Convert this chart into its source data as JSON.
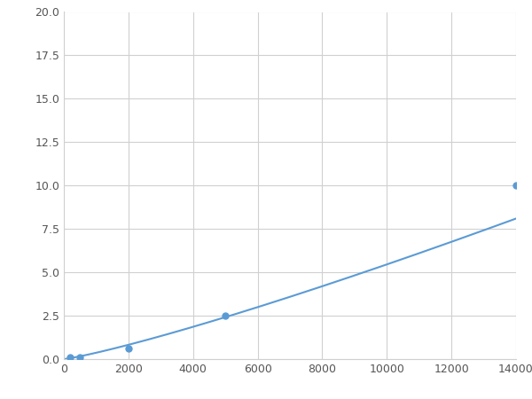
{
  "x": [
    0,
    200,
    500,
    2000,
    5000,
    14000
  ],
  "y": [
    0.0,
    0.08,
    0.12,
    0.6,
    2.5,
    10.0
  ],
  "marked_x": [
    200,
    500,
    2000,
    5000,
    14000
  ],
  "marked_y": [
    0.08,
    0.12,
    0.6,
    2.5,
    10.0
  ],
  "line_color": "#5b9bd5",
  "marker_color": "#5b9bd5",
  "marker_size": 5,
  "xlim": [
    0,
    14000
  ],
  "ylim": [
    0,
    20.0
  ],
  "xticks": [
    0,
    2000,
    4000,
    6000,
    8000,
    10000,
    12000,
    14000
  ],
  "yticks": [
    0.0,
    2.5,
    5.0,
    7.5,
    10.0,
    12.5,
    15.0,
    17.5,
    20.0
  ],
  "grid_color": "#d0d0d0",
  "background_color": "#ffffff",
  "linewidth": 1.5,
  "figsize": [
    6.0,
    4.5
  ],
  "dpi": 100
}
